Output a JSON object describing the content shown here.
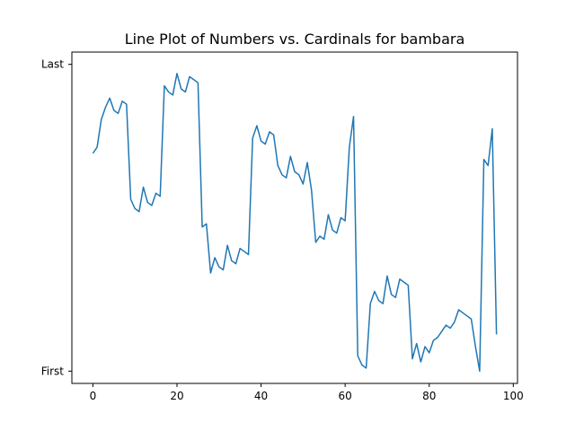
{
  "chart_data": {
    "type": "line",
    "title": "Line Plot of Numbers vs. Cardinals for bambara",
    "xlabel": "",
    "ylabel": "",
    "xlim": [
      -5,
      101
    ],
    "ylim": [
      -0.04,
      1.04
    ],
    "x_ticks": [
      0,
      20,
      40,
      60,
      80,
      100
    ],
    "y_ticks": [
      {
        "value": 0,
        "label": "First"
      },
      {
        "value": 1,
        "label": "Last"
      }
    ],
    "grid": false,
    "color": "#1f77b4",
    "series": [
      {
        "x": [
          0,
          1,
          2,
          3,
          4,
          5,
          6,
          7,
          8,
          9,
          10,
          11,
          12,
          13,
          14,
          15,
          16,
          17,
          18,
          19,
          20,
          21,
          22,
          23,
          24,
          25,
          26,
          27,
          28,
          29,
          30,
          31,
          32,
          33,
          34,
          35,
          36,
          37,
          38,
          39,
          40,
          41,
          42,
          43,
          44,
          45,
          46,
          47,
          48,
          49,
          50,
          51,
          52,
          53,
          54,
          55,
          56,
          57,
          58,
          59,
          60,
          61,
          62,
          63,
          64,
          65,
          66,
          67,
          68,
          69,
          70,
          71,
          72,
          73,
          74,
          75,
          76,
          77,
          78,
          79,
          80,
          81,
          82,
          83,
          84,
          85,
          86,
          87,
          88,
          89,
          90,
          91,
          92,
          93,
          94,
          95,
          96
        ],
        "values": [
          0.71,
          0.73,
          0.82,
          0.86,
          0.89,
          0.85,
          0.84,
          0.88,
          0.87,
          0.56,
          0.53,
          0.52,
          0.6,
          0.55,
          0.54,
          0.58,
          0.57,
          0.93,
          0.91,
          0.9,
          0.97,
          0.92,
          0.91,
          0.96,
          0.95,
          0.94,
          0.47,
          0.48,
          0.32,
          0.37,
          0.34,
          0.33,
          0.41,
          0.36,
          0.35,
          0.4,
          0.39,
          0.38,
          0.76,
          0.8,
          0.75,
          0.74,
          0.78,
          0.77,
          0.67,
          0.64,
          0.63,
          0.7,
          0.65,
          0.64,
          0.61,
          0.68,
          0.59,
          0.42,
          0.44,
          0.43,
          0.51,
          0.46,
          0.45,
          0.5,
          0.49,
          0.73,
          0.83,
          0.05,
          0.02,
          0.01,
          0.22,
          0.26,
          0.23,
          0.22,
          0.31,
          0.25,
          0.24,
          0.3,
          0.29,
          0.28,
          0.04,
          0.09,
          0.03,
          0.08,
          0.06,
          0.1,
          0.11,
          0.13,
          0.15,
          0.14,
          0.16,
          0.2,
          0.19,
          0.18,
          0.17,
          0.08,
          0.0,
          0.69,
          0.67,
          0.79,
          0.12
        ]
      }
    ]
  }
}
